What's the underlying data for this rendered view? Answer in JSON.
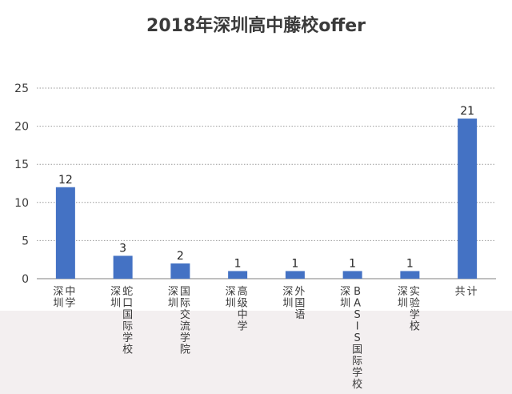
{
  "chart_data": {
    "type": "bar",
    "title": "2018年深圳高中藤校offer",
    "categories": [
      "深圳中学",
      "深圳蛇口国际学校",
      "深圳国际交流学院",
      "深圳高级中学",
      "深圳外国语",
      "深圳BASIS国际学校",
      "深圳实验学校",
      "共计"
    ],
    "values": [
      12,
      3,
      2,
      1,
      1,
      1,
      1,
      21
    ],
    "xlabel": "",
    "ylabel": "",
    "ylim": [
      0,
      25
    ],
    "yticks": [
      0,
      5,
      10,
      15,
      20,
      25
    ],
    "grid": true,
    "bar_color": "#4472c4"
  }
}
